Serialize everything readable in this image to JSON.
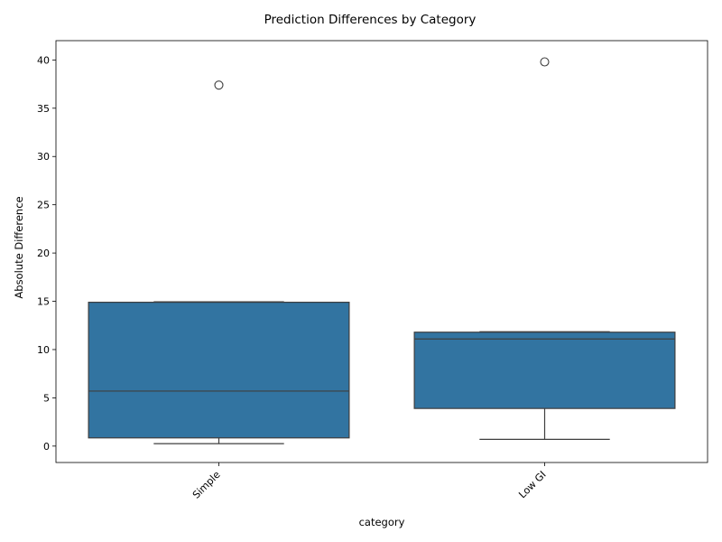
{
  "chart_data": {
    "type": "box",
    "title": "Prediction Differences by Category",
    "xlabel": "category",
    "ylabel": "Absolute Difference",
    "categories": [
      "Simple",
      "Low GI"
    ],
    "ylim": [
      -1.7,
      42
    ],
    "yticks": [
      0,
      5,
      10,
      15,
      20,
      25,
      30,
      35,
      40
    ],
    "grid": false,
    "box_color": "#3274a1",
    "boxes": [
      {
        "category": "Simple",
        "whisker_low": 0.25,
        "q1": 0.85,
        "median": 5.7,
        "q3": 14.9,
        "whisker_high": 14.95,
        "outliers": [
          37.4
        ]
      },
      {
        "category": "Low GI",
        "whisker_low": 0.7,
        "q1": 3.9,
        "median": 11.1,
        "q3": 11.8,
        "whisker_high": 11.85,
        "outliers": [
          39.8
        ]
      }
    ]
  }
}
